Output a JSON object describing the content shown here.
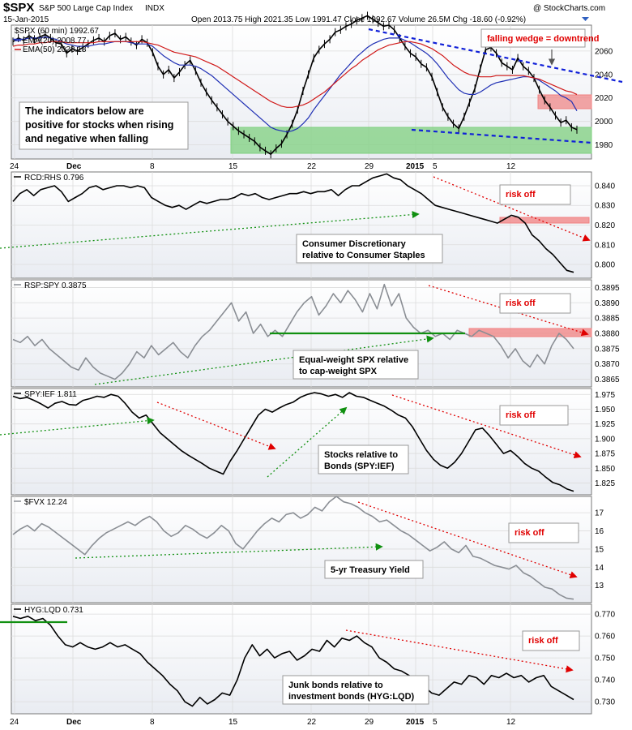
{
  "header": {
    "symbol": "$SPX",
    "name": "S&P 500 Large Cap Index",
    "exchange": "INDX",
    "date": "15-Jan-2015",
    "ohlc": "Open 2013.75  High 2021.35  Low 1991.47  Close 1992.67  Volume 26.5M  Chg -18.60 (-0.92%)",
    "watermark": "@ StockCharts.com"
  },
  "colors": {
    "price": "#000000",
    "ema20": "#1f2fb4",
    "ema50": "#d01818",
    "ratio_gray": "#8a8e94",
    "wedge": "#1020d8",
    "arrow_red": "#e00000",
    "arrow_green": "#109010",
    "support_zone": "#7fd07f",
    "resistance_zone": "#f08080"
  },
  "x_axis": {
    "labels": [
      "24",
      "Dec",
      "8",
      "15",
      "22",
      "29",
      "2015",
      "5",
      "12"
    ],
    "bottom_labels": [
      "24",
      "Dec",
      "8",
      "15",
      "22",
      "29",
      "2015",
      "5",
      "12"
    ]
  },
  "chart_data": [
    {
      "type": "line",
      "title": "$SPX (60 min) 1992.67",
      "legend": [
        "$SPX (60 min) 1992.67",
        "EMA(20) 2008.77",
        "EMA(50) 2023.18"
      ],
      "y_ticks": [
        1980,
        2000,
        2020,
        2040,
        2060
      ],
      "ylim": [
        1968,
        2082
      ],
      "x_labels": [
        "24",
        "Dec",
        "8",
        "15",
        "22",
        "29",
        "2015",
        "5",
        "12"
      ],
      "series": [
        {
          "name": "$SPX (60 min) 1992.67",
          "values": [
            2068,
            2071,
            2069,
            2073,
            2070,
            2072,
            2074,
            2071,
            2067,
            2066,
            2058,
            2062,
            2060,
            2063,
            2066,
            2069,
            2071,
            2068,
            2073,
            2075,
            2070,
            2072,
            2068,
            2065,
            2070,
            2067,
            2059,
            2047,
            2040,
            2044,
            2037,
            2042,
            2048,
            2052,
            2043,
            2033,
            2025,
            2018,
            2012,
            2006,
            2000,
            1996,
            1992,
            1989,
            1986,
            1983,
            1978,
            1975,
            1972,
            1977,
            1981,
            1989,
            1998,
            2010,
            2026,
            2040,
            2054,
            2061,
            2066,
            2070,
            2076,
            2078,
            2081,
            2083,
            2086,
            2088,
            2090,
            2087,
            2084,
            2081,
            2082,
            2078,
            2071,
            2064,
            2058,
            2055,
            2049,
            2046,
            2038,
            2025,
            2012,
            2004,
            1998,
            1994,
            2004,
            2016,
            2028,
            2045,
            2061,
            2063,
            2058,
            2050,
            2047,
            2044,
            2054,
            2047,
            2043,
            2037,
            2027,
            2018,
            2012,
            2005,
            1999,
            2001,
            1995,
            1993
          ]
        },
        {
          "name": "EMA(20) 2008.77",
          "values": [
            2070,
            2070,
            2070,
            2071,
            2071,
            2071,
            2072,
            2071,
            2070,
            2068,
            2066,
            2065,
            2064,
            2064,
            2064,
            2065,
            2066,
            2066,
            2067,
            2068,
            2068,
            2068,
            2067,
            2066,
            2066,
            2066,
            2064,
            2060,
            2056,
            2053,
            2050,
            2048,
            2048,
            2048,
            2047,
            2045,
            2042,
            2039,
            2035,
            2031,
            2027,
            2023,
            2019,
            2015,
            2011,
            2007,
            2003,
            1999,
            1995,
            1993,
            1992,
            1991,
            1992,
            1994,
            1998,
            2003,
            2010,
            2016,
            2022,
            2028,
            2034,
            2040,
            2045,
            2050,
            2055,
            2059,
            2063,
            2066,
            2068,
            2070,
            2071,
            2071,
            2071,
            2069,
            2067,
            2064,
            2061,
            2058,
            2054,
            2049,
            2043,
            2037,
            2032,
            2027,
            2024,
            2023,
            2023,
            2025,
            2028,
            2031,
            2033,
            2034,
            2035,
            2036,
            2037,
            2038,
            2038,
            2037,
            2035,
            2032,
            2029,
            2026,
            2022,
            2020,
            2017,
            2009
          ]
        },
        {
          "name": "EMA(50) 2023.18",
          "values": [
            2064,
            2065,
            2065,
            2066,
            2066,
            2067,
            2067,
            2068,
            2068,
            2068,
            2067,
            2067,
            2067,
            2067,
            2067,
            2067,
            2068,
            2068,
            2068,
            2068,
            2068,
            2068,
            2068,
            2068,
            2068,
            2067,
            2066,
            2065,
            2063,
            2061,
            2059,
            2058,
            2057,
            2056,
            2055,
            2053,
            2051,
            2049,
            2047,
            2044,
            2041,
            2038,
            2035,
            2032,
            2029,
            2026,
            2023,
            2020,
            2017,
            2015,
            2013,
            2012,
            2012,
            2013,
            2014,
            2016,
            2019,
            2022,
            2025,
            2029,
            2033,
            2037,
            2041,
            2045,
            2048,
            2052,
            2055,
            2058,
            2061,
            2063,
            2065,
            2066,
            2067,
            2068,
            2068,
            2067,
            2066,
            2064,
            2062,
            2059,
            2056,
            2052,
            2048,
            2045,
            2042,
            2040,
            2039,
            2038,
            2038,
            2038,
            2039,
            2039,
            2039,
            2039,
            2039,
            2039,
            2038,
            2037,
            2036,
            2034,
            2032,
            2030,
            2028,
            2026,
            2025,
            2023
          ]
        }
      ],
      "annotations": [
        "falling wedge = downtrend",
        "The indicators below are positive for stocks when rising and negative when falling"
      ]
    },
    {
      "type": "line",
      "title": "RCD:RHS 0.796",
      "legend": [
        "RCD:RHS 0.796"
      ],
      "y_ticks": [
        0.8,
        0.81,
        0.82,
        0.83,
        0.84
      ],
      "ylim": [
        0.793,
        0.847
      ],
      "series": [
        {
          "name": "RCD:RHS 0.796",
          "values": [
            0.832,
            0.836,
            0.838,
            0.835,
            0.838,
            0.839,
            0.84,
            0.837,
            0.832,
            0.834,
            0.836,
            0.839,
            0.84,
            0.838,
            0.839,
            0.84,
            0.84,
            0.839,
            0.84,
            0.839,
            0.834,
            0.832,
            0.83,
            0.829,
            0.83,
            0.828,
            0.83,
            0.832,
            0.831,
            0.832,
            0.833,
            0.833,
            0.834,
            0.836,
            0.835,
            0.836,
            0.834,
            0.833,
            0.834,
            0.835,
            0.836,
            0.836,
            0.837,
            0.836,
            0.837,
            0.837,
            0.838,
            0.835,
            0.838,
            0.84,
            0.84,
            0.842,
            0.844,
            0.845,
            0.846,
            0.844,
            0.843,
            0.84,
            0.838,
            0.836,
            0.833,
            0.83,
            0.829,
            0.828,
            0.827,
            0.826,
            0.825,
            0.824,
            0.823,
            0.822,
            0.821,
            0.823,
            0.825,
            0.824,
            0.821,
            0.815,
            0.812,
            0.808,
            0.805,
            0.801,
            0.797,
            0.796
          ]
        }
      ],
      "annotations": [
        "risk off",
        "Consumer Discretionary relative to Consumer Staples"
      ]
    },
    {
      "type": "line",
      "title": "RSP:SPY 0.3875",
      "legend": [
        "RSP:SPY 0.3875"
      ],
      "y_ticks": [
        0.3865,
        0.387,
        0.3875,
        0.388,
        0.3885,
        0.389,
        0.3895
      ],
      "ylim": [
        0.38625,
        0.38975
      ],
      "series": [
        {
          "name": "RSP:SPY 0.3875",
          "values": [
            0.3878,
            0.3877,
            0.3879,
            0.3876,
            0.3878,
            0.3875,
            0.3873,
            0.3871,
            0.3869,
            0.3868,
            0.3872,
            0.3869,
            0.3867,
            0.3866,
            0.3865,
            0.3867,
            0.387,
            0.3874,
            0.3872,
            0.3876,
            0.3873,
            0.3875,
            0.3877,
            0.3874,
            0.3872,
            0.3876,
            0.3879,
            0.3881,
            0.3884,
            0.3887,
            0.389,
            0.3884,
            0.3887,
            0.388,
            0.3883,
            0.3879,
            0.3881,
            0.3879,
            0.3883,
            0.3887,
            0.389,
            0.3892,
            0.3886,
            0.3889,
            0.3893,
            0.389,
            0.3894,
            0.3891,
            0.3887,
            0.3893,
            0.3888,
            0.3896,
            0.3889,
            0.3893,
            0.3885,
            0.3882,
            0.388,
            0.3881,
            0.3879,
            0.388,
            0.3878,
            0.3881,
            0.388,
            0.3879,
            0.3881,
            0.388,
            0.3879,
            0.3876,
            0.3872,
            0.3875,
            0.3871,
            0.3869,
            0.3873,
            0.387,
            0.3876,
            0.388,
            0.3878,
            0.3875
          ]
        }
      ],
      "annotations": [
        "risk off",
        "Equal-weight SPX relative to cap-weight SPX"
      ]
    },
    {
      "type": "line",
      "title": "SPY:IEF 1.811",
      "legend": [
        "SPY:IEF 1.811"
      ],
      "y_ticks": [
        1.825,
        1.85,
        1.875,
        1.9,
        1.925,
        1.95,
        1.975
      ],
      "ylim": [
        1.805,
        1.985
      ],
      "series": [
        {
          "name": "SPY:IEF 1.811",
          "values": [
            1.972,
            1.968,
            1.97,
            1.965,
            1.959,
            1.952,
            1.96,
            1.963,
            1.958,
            1.957,
            1.965,
            1.968,
            1.972,
            1.97,
            1.975,
            1.972,
            1.96,
            1.945,
            1.935,
            1.94,
            1.925,
            1.91,
            1.9,
            1.89,
            1.88,
            1.872,
            1.865,
            1.858,
            1.85,
            1.845,
            1.84,
            1.862,
            1.88,
            1.9,
            1.92,
            1.94,
            1.95,
            1.945,
            1.952,
            1.958,
            1.962,
            1.97,
            1.975,
            1.978,
            1.976,
            1.972,
            1.975,
            1.97,
            1.978,
            1.972,
            1.97,
            1.965,
            1.96,
            1.955,
            1.948,
            1.94,
            1.935,
            1.92,
            1.9,
            1.88,
            1.865,
            1.855,
            1.85,
            1.86,
            1.875,
            1.895,
            1.915,
            1.918,
            1.905,
            1.89,
            1.875,
            1.88,
            1.87,
            1.858,
            1.85,
            1.845,
            1.835,
            1.826,
            1.822,
            1.815,
            1.811
          ]
        }
      ],
      "annotations": [
        "risk off",
        "Stocks relative to Bonds (SPY:IEF)"
      ]
    },
    {
      "type": "line",
      "title": "$FVX 12.24",
      "legend": [
        "$FVX 12.24"
      ],
      "y_ticks": [
        13,
        14,
        15,
        16,
        17
      ],
      "ylim": [
        12.05,
        17.9
      ],
      "series": [
        {
          "name": "$FVX 12.24",
          "values": [
            15.8,
            16.1,
            16.3,
            16.0,
            16.4,
            16.2,
            15.9,
            15.6,
            15.3,
            15.0,
            14.7,
            15.2,
            15.6,
            15.9,
            16.1,
            16.3,
            16.5,
            16.3,
            16.6,
            16.8,
            16.5,
            16.0,
            15.7,
            15.9,
            16.3,
            16.1,
            15.8,
            15.6,
            15.9,
            16.3,
            16.0,
            15.3,
            15.0,
            15.5,
            16.0,
            16.4,
            16.7,
            16.5,
            16.9,
            17.0,
            16.7,
            16.9,
            17.3,
            17.1,
            17.6,
            17.9,
            17.6,
            17.5,
            17.3,
            17.0,
            16.8,
            16.5,
            16.6,
            16.3,
            16.0,
            15.8,
            15.5,
            15.2,
            14.9,
            15.1,
            15.4,
            15.0,
            14.8,
            15.2,
            14.6,
            14.5,
            14.3,
            14.1,
            14.0,
            13.9,
            14.1,
            13.7,
            13.5,
            13.2,
            12.9,
            12.8,
            12.5,
            12.3,
            12.24
          ]
        }
      ],
      "annotations": [
        "risk off",
        "5-yr Treasury Yield"
      ]
    },
    {
      "type": "line",
      "title": "HYG:LQD 0.731",
      "legend": [
        "HYG:LQD 0.731"
      ],
      "y_ticks": [
        0.73,
        0.74,
        0.75,
        0.76,
        0.77
      ],
      "ylim": [
        0.7245,
        0.7745
      ],
      "series": [
        {
          "name": "HYG:LQD 0.731",
          "values": [
            0.769,
            0.768,
            0.769,
            0.767,
            0.768,
            0.765,
            0.76,
            0.756,
            0.755,
            0.757,
            0.755,
            0.754,
            0.755,
            0.757,
            0.755,
            0.756,
            0.754,
            0.752,
            0.748,
            0.745,
            0.742,
            0.738,
            0.735,
            0.73,
            0.728,
            0.732,
            0.729,
            0.731,
            0.734,
            0.733,
            0.74,
            0.75,
            0.756,
            0.751,
            0.754,
            0.75,
            0.752,
            0.753,
            0.749,
            0.751,
            0.754,
            0.753,
            0.758,
            0.755,
            0.759,
            0.758,
            0.76,
            0.757,
            0.755,
            0.75,
            0.748,
            0.745,
            0.744,
            0.742,
            0.74,
            0.737,
            0.734,
            0.733,
            0.736,
            0.739,
            0.738,
            0.742,
            0.741,
            0.738,
            0.742,
            0.741,
            0.743,
            0.741,
            0.742,
            0.739,
            0.741,
            0.742,
            0.737,
            0.735,
            0.733,
            0.731
          ]
        }
      ],
      "annotations": [
        "risk off",
        "Junk bonds relative to investment bonds (HYG:LQD)"
      ]
    }
  ]
}
